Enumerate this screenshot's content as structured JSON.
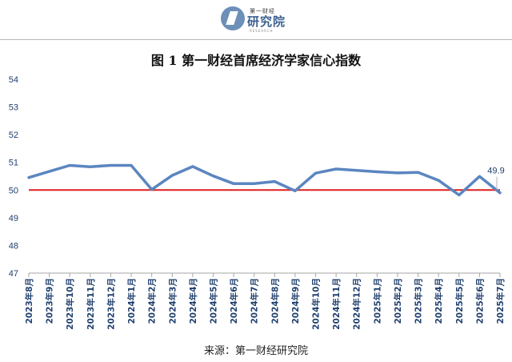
{
  "logo": {
    "small_text": "第一财经",
    "big_text": "研究院",
    "sub_text": "RESEARCH"
  },
  "chart_data": {
    "type": "line",
    "title": "图 1  第一财经首席经济学家信心指数",
    "categories": [
      "2023年8月",
      "2023年9月",
      "2023年10月",
      "2023年11月",
      "2023年12月",
      "2024年1月",
      "2024年2月",
      "2024年3月",
      "2024年4月",
      "2024年5月",
      "2024年6月",
      "2024年7月",
      "2024年8月",
      "2024年9月",
      "2024年10月",
      "2024年11月",
      "2024年12月",
      "2025年1月",
      "2025年2月",
      "2025年3月",
      "2025年4月",
      "2025年5月",
      "2025年6月",
      "2025年7月"
    ],
    "values": [
      50.45,
      50.67,
      50.89,
      50.84,
      50.89,
      50.89,
      50.02,
      50.53,
      50.85,
      50.51,
      50.23,
      50.23,
      50.31,
      49.97,
      50.61,
      50.76,
      50.71,
      50.66,
      50.62,
      50.64,
      50.35,
      49.82,
      50.49,
      49.9
    ],
    "reference_line": 50,
    "reference_color": "#e01e1e",
    "line_color": "#5b86c0",
    "ylim": [
      47,
      54
    ],
    "yticks": [
      "47",
      "48",
      "49",
      "50",
      "51",
      "52",
      "53",
      "54"
    ],
    "annotation": {
      "index": 23,
      "text": "49.9"
    },
    "grid": false
  },
  "source": "来源：第一财经研究院"
}
